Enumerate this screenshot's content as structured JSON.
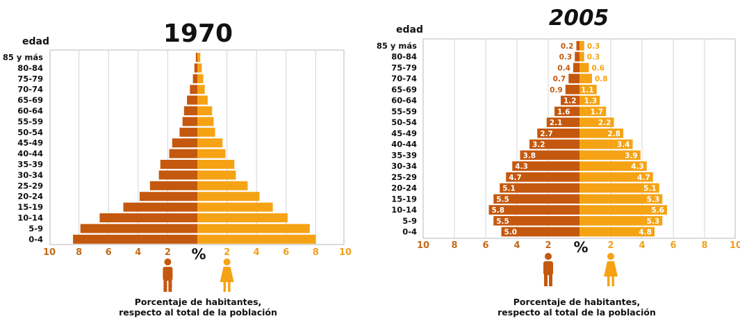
{
  "colors": {
    "male": "#c4580e",
    "female": "#f5a315",
    "male_tick": "#c46a1a",
    "female_tick": "#f0a020"
  },
  "icons": {
    "male": "man-icon",
    "female": "woman-icon"
  },
  "chart_data": [
    {
      "type": "bar",
      "title": "1970",
      "ylabel": "edad",
      "xlabel": "%",
      "categories": [
        "85 y más",
        "80-84",
        "75-79",
        "70-74",
        "65-69",
        "60-64",
        "55-59",
        "50-54",
        "45-49",
        "40-44",
        "35-39",
        "30-34",
        "25-29",
        "20-24",
        "15-19",
        "10-14",
        "5-9",
        "0-4"
      ],
      "series": [
        {
          "values": [
            0.1,
            0.2,
            0.3,
            0.5,
            0.7,
            0.9,
            1.0,
            1.2,
            1.7,
            1.9,
            2.5,
            2.6,
            3.2,
            3.9,
            5.0,
            6.6,
            7.9,
            8.4
          ]
        },
        {
          "values": [
            0.2,
            0.3,
            0.4,
            0.5,
            0.7,
            1.0,
            1.1,
            1.2,
            1.7,
            1.9,
            2.5,
            2.6,
            3.4,
            4.2,
            5.1,
            6.1,
            7.6,
            8.0
          ]
        }
      ],
      "xlim": [
        -10,
        10
      ],
      "xticks": [
        "10",
        "8",
        "6",
        "4",
        "2",
        "2",
        "4",
        "6",
        "8",
        "10"
      ],
      "grid": true
    },
    {
      "type": "bar",
      "title": "2005",
      "ylabel": "edad",
      "xlabel": "%",
      "categories": [
        "85 y más",
        "80-84",
        "75-79",
        "70-74",
        "65-69",
        "60-64",
        "55-59",
        "50-54",
        "45-49",
        "40-44",
        "35-39",
        "30-34",
        "25-29",
        "20-24",
        "15-19",
        "10-14",
        "5-9",
        "0-4"
      ],
      "series": [
        {
          "values": [
            0.2,
            0.3,
            0.4,
            0.7,
            0.9,
            1.2,
            1.6,
            2.1,
            2.7,
            3.2,
            3.8,
            4.3,
            4.7,
            5.1,
            5.5,
            5.8,
            5.5,
            5.0
          ],
          "labels": [
            "0.2",
            "0.3",
            "0.4",
            "0.7",
            "0.9",
            "1.2",
            "1.6",
            "2.1",
            "2.7",
            "3.2",
            "3.8",
            "4.3",
            "4.7",
            "5.1",
            "5.5",
            "5.8",
            "5.5",
            "5.0"
          ]
        },
        {
          "values": [
            0.3,
            0.3,
            0.6,
            0.8,
            1.1,
            1.3,
            1.7,
            2.2,
            2.8,
            3.4,
            3.9,
            4.3,
            4.7,
            5.1,
            5.3,
            5.6,
            5.3,
            4.8
          ],
          "labels": [
            "0.3",
            "0.3",
            "0.6",
            "0.8",
            "1.1",
            "1.3",
            "1.7",
            "2.2",
            "2.8",
            "3.4",
            "3.9",
            "4.3",
            "4.7",
            "5.1",
            "5.3",
            "5.6",
            "5.3",
            "4.8"
          ]
        }
      ],
      "xlim": [
        -10,
        10
      ],
      "xticks": [
        "10",
        "8",
        "6",
        "4",
        "2",
        "2",
        "4",
        "6",
        "8",
        "10"
      ],
      "grid": true
    }
  ],
  "captions": [
    {
      "line1": "Porcentaje de habitantes,",
      "line2": "respecto al total de la población"
    },
    {
      "line1": "Porcentaje de habitantes,",
      "line2": "respecto al total de la población"
    }
  ]
}
